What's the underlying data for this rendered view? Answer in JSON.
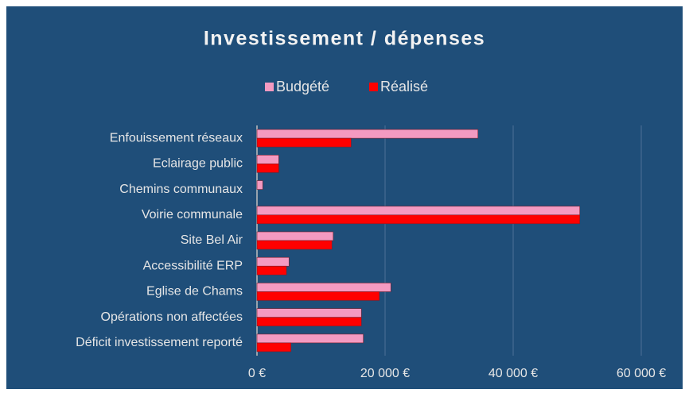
{
  "chart_data": {
    "type": "hbar",
    "title": "Investissement / dépenses",
    "categories": [
      "Enfouissement  réseaux",
      "Eclairage public",
      "Chemins communaux",
      "Voirie communale",
      "Site Bel Air",
      "Accessibilité ERP",
      "Eglise de Chams",
      "Opérations non affectées",
      "Déficit investissement reporté"
    ],
    "series": [
      {
        "name": "Budgété",
        "color": "#f49ac1",
        "values": [
          34500,
          3400,
          900,
          50400,
          11900,
          5000,
          20900,
          16300,
          16600
        ]
      },
      {
        "name": "Réalisé",
        "color": "#ff0000",
        "values": [
          14700,
          3400,
          0,
          50400,
          11700,
          4600,
          19100,
          16300,
          5300
        ]
      }
    ],
    "xlim": [
      0,
      60000
    ],
    "xticks": [
      {
        "value": 0,
        "label": "0 €"
      },
      {
        "value": 20000,
        "label": "20 000 €"
      },
      {
        "value": 40000,
        "label": "40 000 €"
      },
      {
        "value": 60000,
        "label": "60 000 €"
      }
    ],
    "grid": true,
    "legend": "top"
  }
}
